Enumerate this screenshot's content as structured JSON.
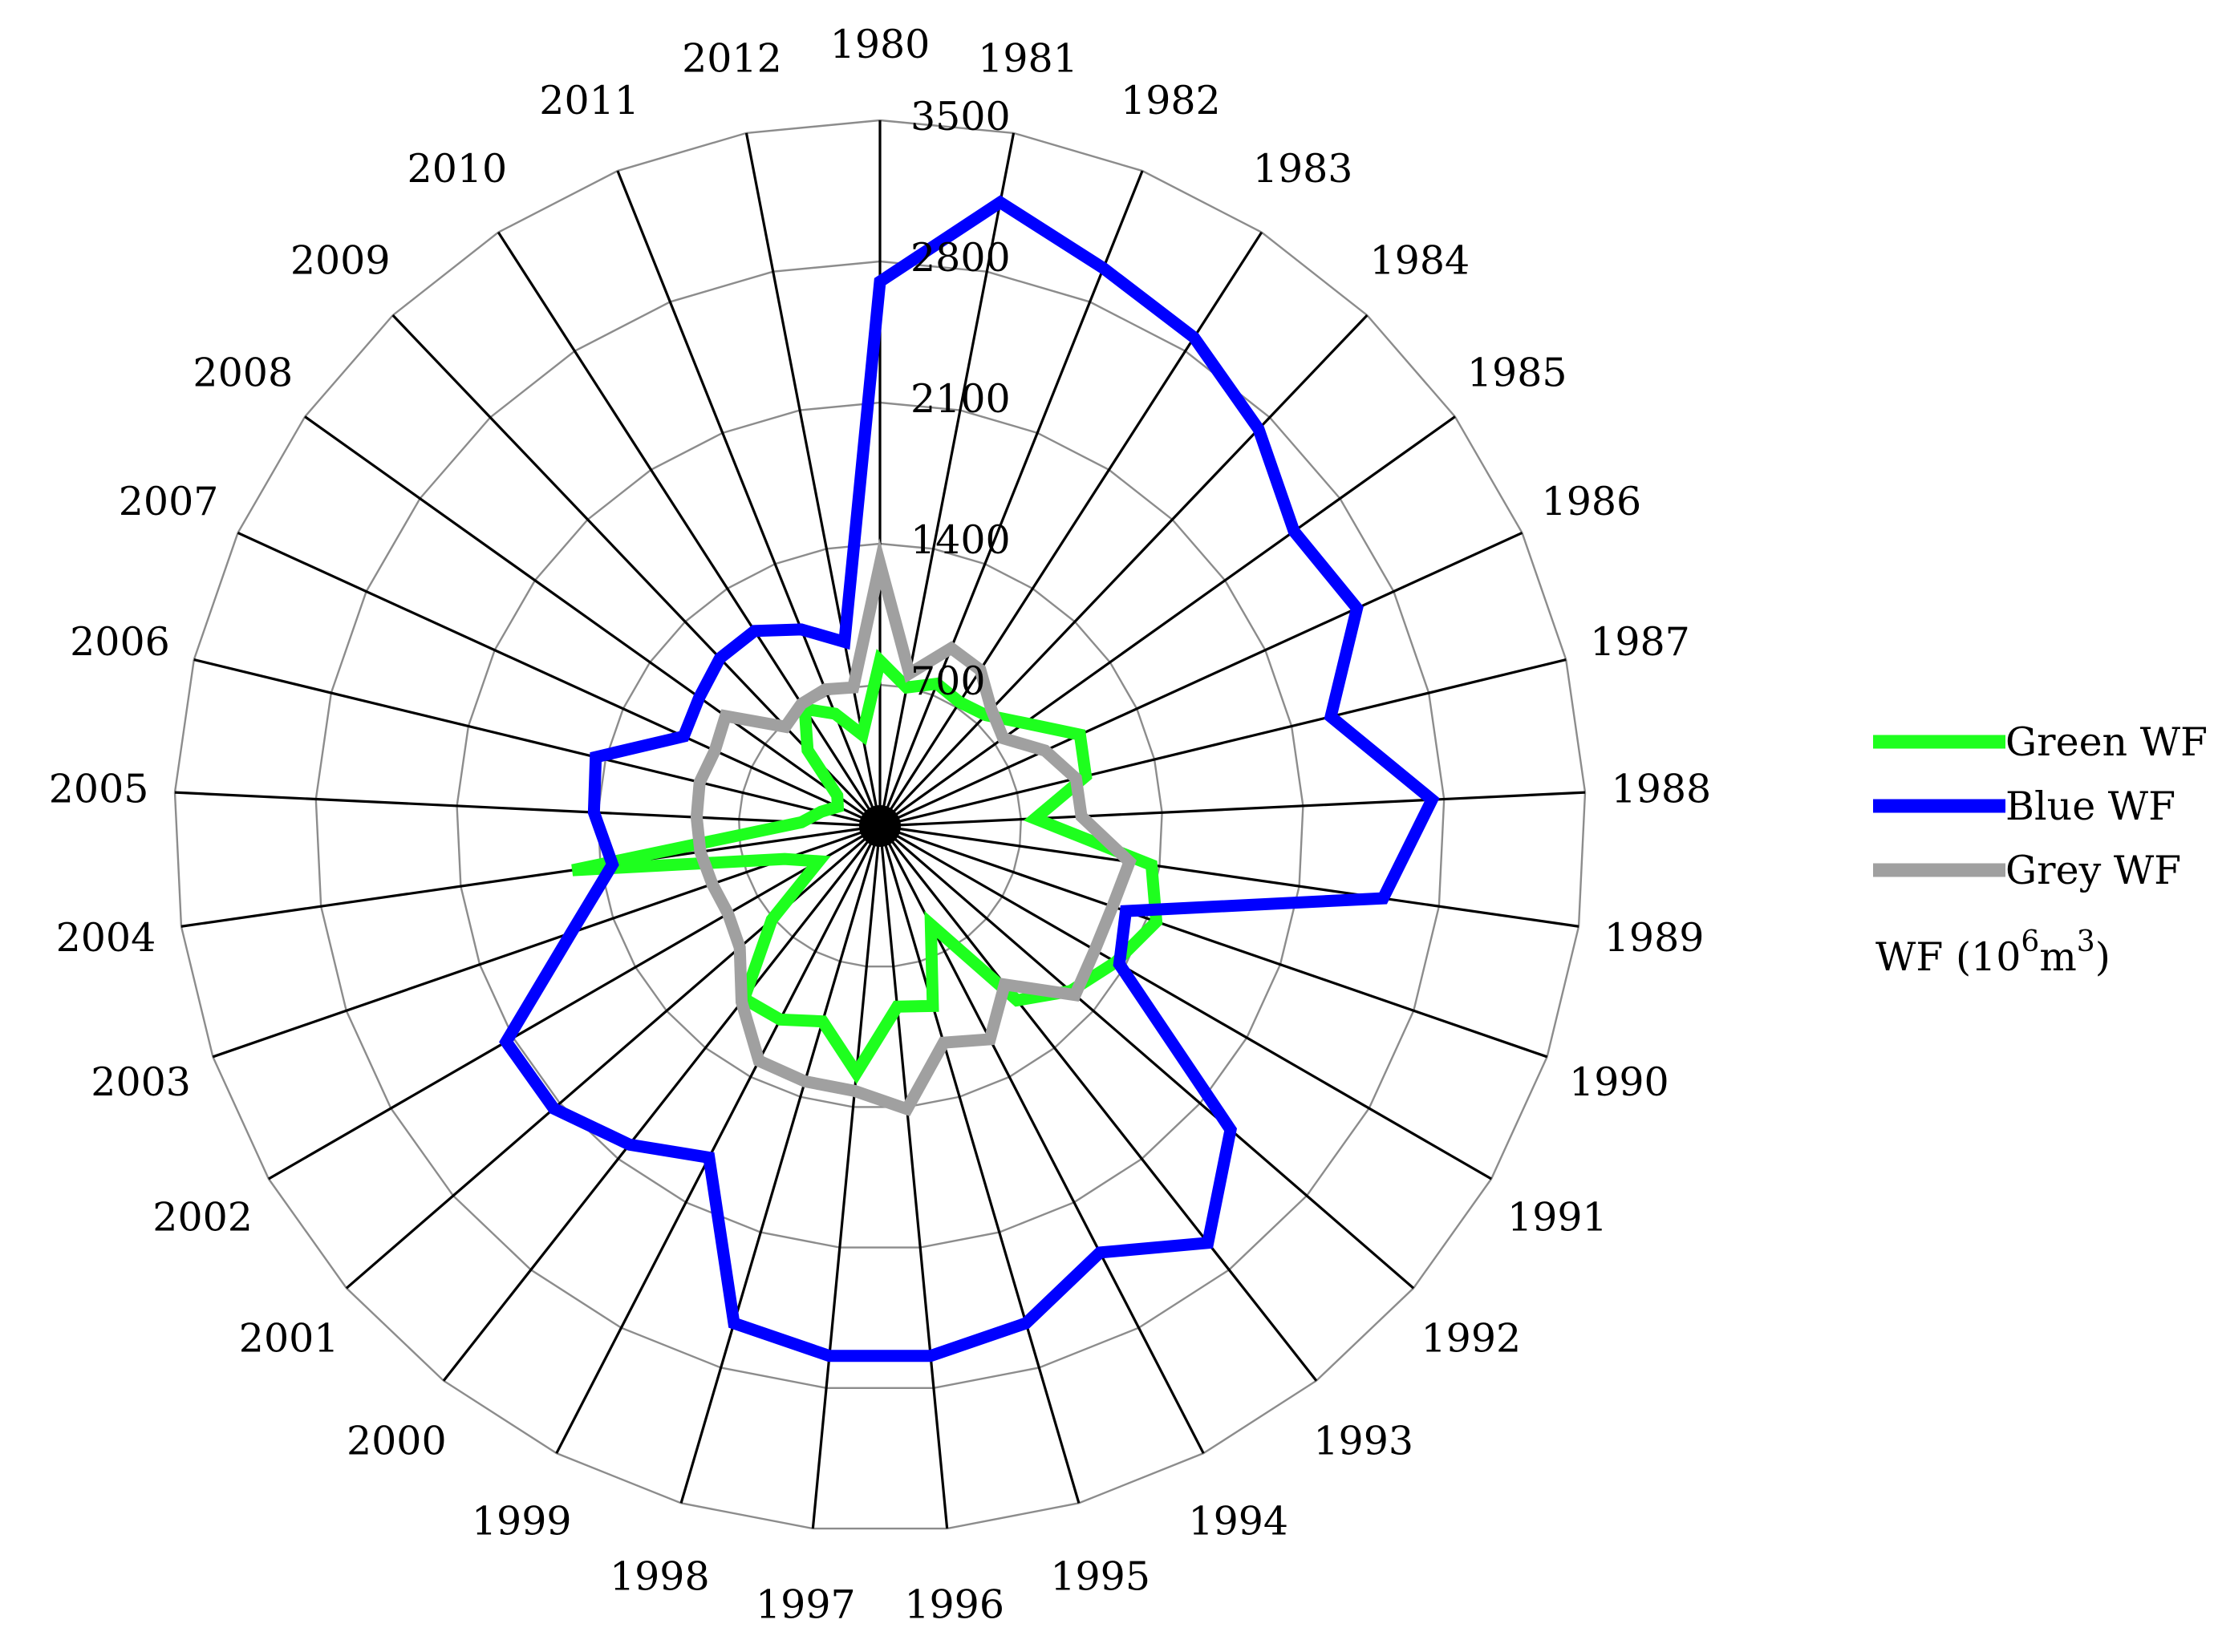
{
  "chart_data": {
    "type": "radar",
    "title": "",
    "categories": [
      "1980",
      "1981",
      "1982",
      "1983",
      "1984",
      "1985",
      "1986",
      "1987",
      "1988",
      "1989",
      "1990",
      "1991",
      "1992",
      "1993",
      "1994",
      "1995",
      "1996",
      "1997",
      "1998",
      "1999",
      "2000",
      "2001",
      "2002",
      "2003",
      "2004",
      "2005",
      "2006",
      "2007",
      "2008",
      "2009",
      "2010",
      "2011",
      "2012"
    ],
    "radial_ticks": [
      700,
      1400,
      2100,
      2800,
      3500
    ],
    "radial_range": [
      0,
      3500
    ],
    "grid": true,
    "legend_position": "right",
    "unit_label": {
      "prefix": "WF  (10",
      "exp1": "6",
      "mid": "m",
      "exp2": "3",
      "suffix": ")"
    },
    "series": [
      {
        "name": "Green WF",
        "color": "#1EFF1E",
        "values": [
          820,
          700,
          760,
          730,
          760,
          880,
          1090,
          1050,
          770,
          1360,
          1450,
          1350,
          1250,
          1100,
          550,
          930,
          900,
          1230,
          1010,
          1080,
          1090,
          710,
          350,
          500,
          1540,
          390,
          300,
          230,
          260,
          520,
          690,
          600,
          460
        ]
      },
      {
        "name": "Blue WF",
        "color": "#0000FF",
        "values": [
          2700,
          3150,
          2980,
          2880,
          2720,
          2520,
          2600,
          2300,
          2740,
          2520,
          1290,
          1370,
          2300,
          2630,
          2380,
          2570,
          2640,
          2640,
          2570,
          1850,
          2010,
          2140,
          2140,
          1620,
          1340,
          1420,
          1450,
          1070,
          1100,
          1150,
          1150,
          1050,
          930
        ]
      },
      {
        "name": "Grey WF",
        "color": "#A0A0A0",
        "values": [
          1300,
          770,
          950,
          920,
          800,
          750,
          900,
          1000,
          1000,
          1250,
          1220,
          1230,
          1280,
          1000,
          1190,
          1120,
          1410,
          1320,
          1320,
          1310,
          1110,
          920,
          870,
          880,
          900,
          910,
          920,
          900,
          940,
          680,
          720,
          730,
          700
        ]
      }
    ]
  }
}
